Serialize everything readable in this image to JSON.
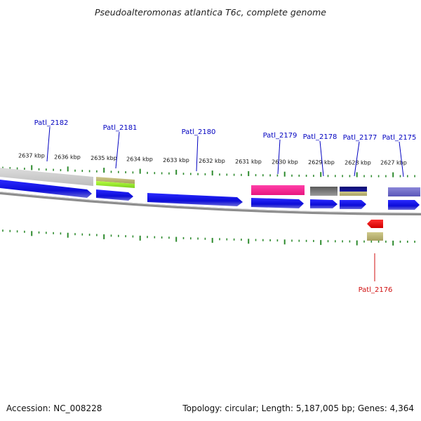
{
  "title": "Pseudoalteromonas atlantica T6c, complete genome",
  "footer": {
    "accession": "Accession: NC_008228",
    "summary": "Topology: circular; Length: 5,187,005 bp; Genes: 4,364"
  },
  "colors": {
    "forward_cds": "#1212e0",
    "ruler_tick": "#2e8b2e",
    "backbone": "#8c8c8c",
    "forward_label": "#0000c0",
    "reverse_label": "#d01010"
  },
  "kbp_labels": [
    {
      "text": "2637 kbp",
      "pos": 45
    },
    {
      "text": "2636 kbp",
      "pos": 96
    },
    {
      "text": "2635 kbp",
      "pos": 148
    },
    {
      "text": "2634 kbp",
      "pos": 199
    },
    {
      "text": "2633 kbp",
      "pos": 251
    },
    {
      "text": "2632 kbp",
      "pos": 302
    },
    {
      "text": "2631 kbp",
      "pos": 354
    },
    {
      "text": "2630 kbp",
      "pos": 406
    },
    {
      "text": "2629 kbp",
      "pos": 458
    },
    {
      "text": "2628 kbp",
      "pos": 510
    },
    {
      "text": "2627 kbp",
      "pos": 561
    }
  ],
  "gene_labels": [
    {
      "name": "Patl_2182",
      "strand": "forward"
    },
    {
      "name": "Patl_2181",
      "strand": "forward"
    },
    {
      "name": "Patl_2180",
      "strand": "forward"
    },
    {
      "name": "Patl_2179",
      "strand": "forward"
    },
    {
      "name": "Patl_2178",
      "strand": "forward"
    },
    {
      "name": "Patl_2177",
      "strand": "forward"
    },
    {
      "name": "Patl_2175",
      "strand": "forward"
    },
    {
      "name": "Patl_2176",
      "strand": "reverse"
    }
  ]
}
